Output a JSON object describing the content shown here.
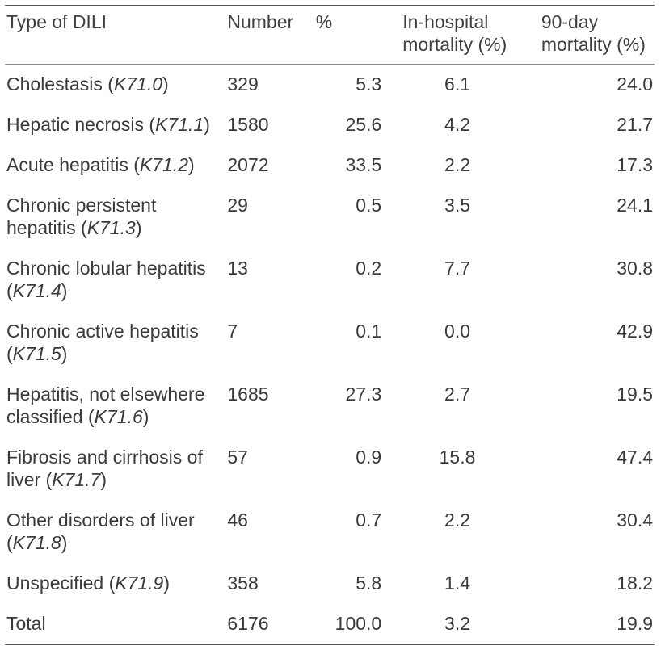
{
  "table": {
    "headers": {
      "type": "Type of DILI",
      "number": "Number",
      "pct": "%",
      "hosp_line1": "In-hospital",
      "hosp_line2": "mortality (%)",
      "day_line1": "90-day",
      "day_line2": "mortality (%)"
    },
    "rows": [
      {
        "label": "Cholestasis (",
        "code": "K71.0",
        "close": ")",
        "number": "329",
        "pct": "5.3",
        "hosp": "6.1",
        "day": "24.0"
      },
      {
        "label": "Hepatic necrosis (",
        "code": "K71.1",
        "close": ")",
        "number": "1580",
        "pct": "25.6",
        "hosp": "4.2",
        "day": "21.7"
      },
      {
        "label": "Acute hepatitis (",
        "code": "K71.2",
        "close": ")",
        "number": "2072",
        "pct": "33.5",
        "hosp": "2.2",
        "day": "17.3"
      },
      {
        "label": "Chronic persistent hepatitis (",
        "code": "K71.3",
        "close": ")",
        "number": "29",
        "pct": "0.5",
        "hosp": "3.5",
        "day": "24.1"
      },
      {
        "label": "Chronic lobular hepatitis (",
        "code": "K71.4",
        "close": ")",
        "number": "13",
        "pct": "0.2",
        "hosp": "7.7",
        "day": "30.8"
      },
      {
        "label": "Chronic active hepatitis (",
        "code": "K71.5",
        "close": ")",
        "number": "7",
        "pct": "0.1",
        "hosp": "0.0",
        "day": "42.9"
      },
      {
        "label": "Hepatitis, not elsewhere classified (",
        "code": "K71.6",
        "close": ")",
        "number": "1685",
        "pct": "27.3",
        "hosp": "2.7",
        "day": "19.5"
      },
      {
        "label": "Fibrosis and cirrhosis of liver (",
        "code": "K71.7",
        "close": ")",
        "number": "57",
        "pct": "0.9",
        "hosp": "15.8",
        "day": "47.4"
      },
      {
        "label": "Other disorders of liver (",
        "code": "K71.8",
        "close": ")",
        "number": "46",
        "pct": "0.7",
        "hosp": "2.2",
        "day": "30.4"
      },
      {
        "label": "Unspecified (",
        "code": "K71.9",
        "close": ")",
        "number": "358",
        "pct": "5.8",
        "hosp": "1.4",
        "day": "18.2"
      },
      {
        "label": "Total",
        "code": "",
        "close": "",
        "number": "6176",
        "pct": "100.0",
        "hosp": "3.2",
        "day": "19.9"
      }
    ]
  }
}
